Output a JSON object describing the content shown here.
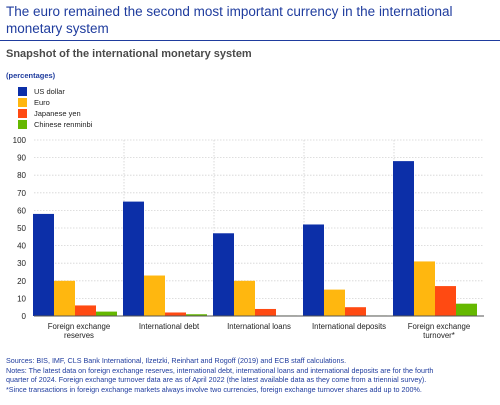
{
  "header": {
    "title": "The euro remained the second most important currency in the international monetary system",
    "subtitle": "Snapshot of the international monetary system"
  },
  "chart_data": {
    "type": "bar",
    "ylabel": "(percentages)",
    "ylim": [
      0,
      100
    ],
    "yticks": [
      0,
      10,
      20,
      30,
      40,
      50,
      60,
      70,
      80,
      90,
      100
    ],
    "grid": true,
    "legend_position": "top-left",
    "categories": [
      [
        "Foreign exchange",
        "reserves"
      ],
      [
        "International debt"
      ],
      [
        "International loans"
      ],
      [
        "International deposits"
      ],
      [
        "Foreign exchange",
        "turnover*"
      ]
    ],
    "series": [
      {
        "name": "US dollar",
        "color": "#0c2fa8",
        "values": [
          58,
          65,
          47,
          52,
          88
        ]
      },
      {
        "name": "Euro",
        "color": "#ffb70f",
        "values": [
          20,
          23,
          20,
          15,
          31
        ]
      },
      {
        "name": "Japanese yen",
        "color": "#ff4a12",
        "values": [
          6,
          2,
          4,
          5,
          17
        ]
      },
      {
        "name": "Chinese renminbi",
        "color": "#65b800",
        "values": [
          2.5,
          1,
          0.3,
          0.3,
          7
        ]
      }
    ]
  },
  "notes": {
    "line1": "Sources: BIS, IMF, CLS Bank International, Ilzetzki, Reinhart and Rogoff (2019) and ECB staff calculations.",
    "line2": "Notes: The latest data on foreign exchange reserves, international debt, international loans and international deposits are for the fourth",
    "line3": "quarter of 2024. Foreign exchange turnover data are as of April 2022 (the latest available data as they come from a triennial survey).",
    "line4": "*Since transactions in foreign exchange markets always involve two currencies, foreign exchange turnover shares add up to 200%."
  }
}
